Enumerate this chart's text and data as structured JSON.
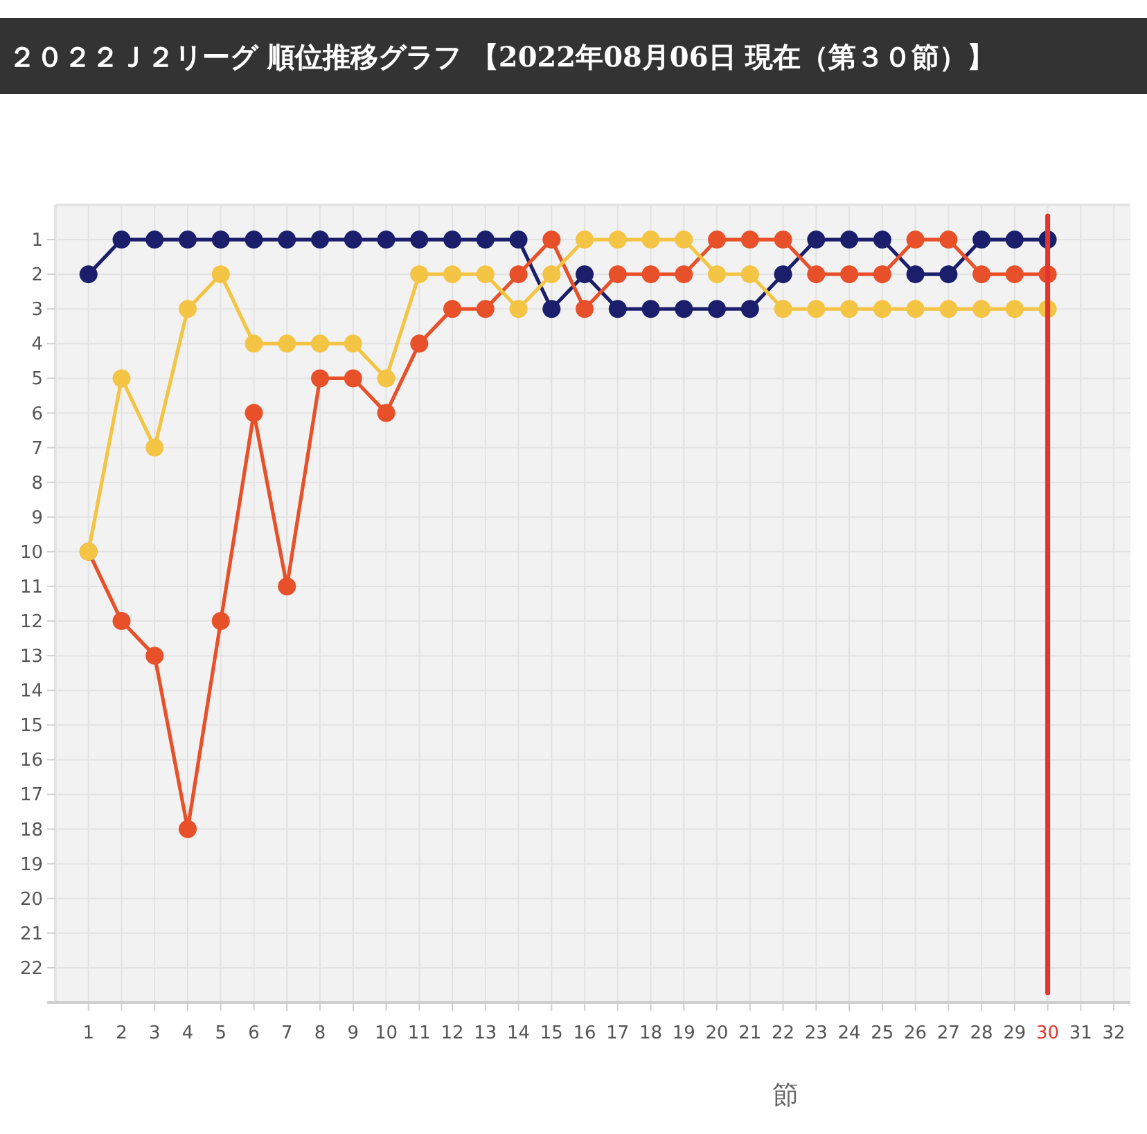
{
  "chart_data": {
    "type": "line",
    "title": "２０２２Ｊ２リーグ 順位推移グラフ 【2022年08月06日 現在（第３０節）】",
    "xlabel": "節",
    "x": [
      1,
      2,
      3,
      4,
      5,
      6,
      7,
      8,
      9,
      10,
      11,
      12,
      13,
      14,
      15,
      16,
      17,
      18,
      19,
      20,
      21,
      22,
      23,
      24,
      25,
      26,
      27,
      28,
      29,
      30
    ],
    "series": [
      {
        "color": "#1b1f6b",
        "values": [
          2,
          1,
          1,
          1,
          1,
          1,
          1,
          1,
          1,
          1,
          1,
          1,
          1,
          1,
          3,
          2,
          3,
          3,
          3,
          3,
          3,
          2,
          1,
          1,
          1,
          2,
          2,
          1,
          1,
          1
        ]
      },
      {
        "color": "#e8502a",
        "values": [
          10,
          12,
          13,
          18,
          12,
          6,
          11,
          5,
          5,
          6,
          4,
          3,
          3,
          2,
          1,
          3,
          2,
          2,
          2,
          1,
          1,
          1,
          2,
          2,
          2,
          1,
          1,
          2,
          2,
          2
        ]
      },
      {
        "color": "#f4c445",
        "values": [
          10,
          5,
          7,
          3,
          2,
          4,
          4,
          4,
          4,
          5,
          2,
          2,
          2,
          3,
          2,
          1,
          1,
          1,
          1,
          2,
          2,
          3,
          3,
          3,
          3,
          3,
          3,
          3,
          3,
          3
        ]
      }
    ],
    "xlim": [
      0,
      32.5
    ],
    "xticks": [
      1,
      2,
      3,
      4,
      5,
      6,
      7,
      8,
      9,
      10,
      11,
      12,
      13,
      14,
      15,
      16,
      17,
      18,
      19,
      20,
      21,
      22,
      23,
      24,
      25,
      26,
      27,
      28,
      29,
      30,
      31,
      32
    ],
    "ylim": [
      23,
      0
    ],
    "yticks": [
      1,
      2,
      3,
      4,
      5,
      6,
      7,
      8,
      9,
      10,
      11,
      12,
      13,
      14,
      15,
      16,
      17,
      18,
      19,
      20,
      21,
      22
    ],
    "grid": true,
    "marker": "circle",
    "line_style": "solid",
    "ref_lines": [
      {
        "axis": "x",
        "value": 30,
        "color": "#e3342f"
      }
    ]
  }
}
